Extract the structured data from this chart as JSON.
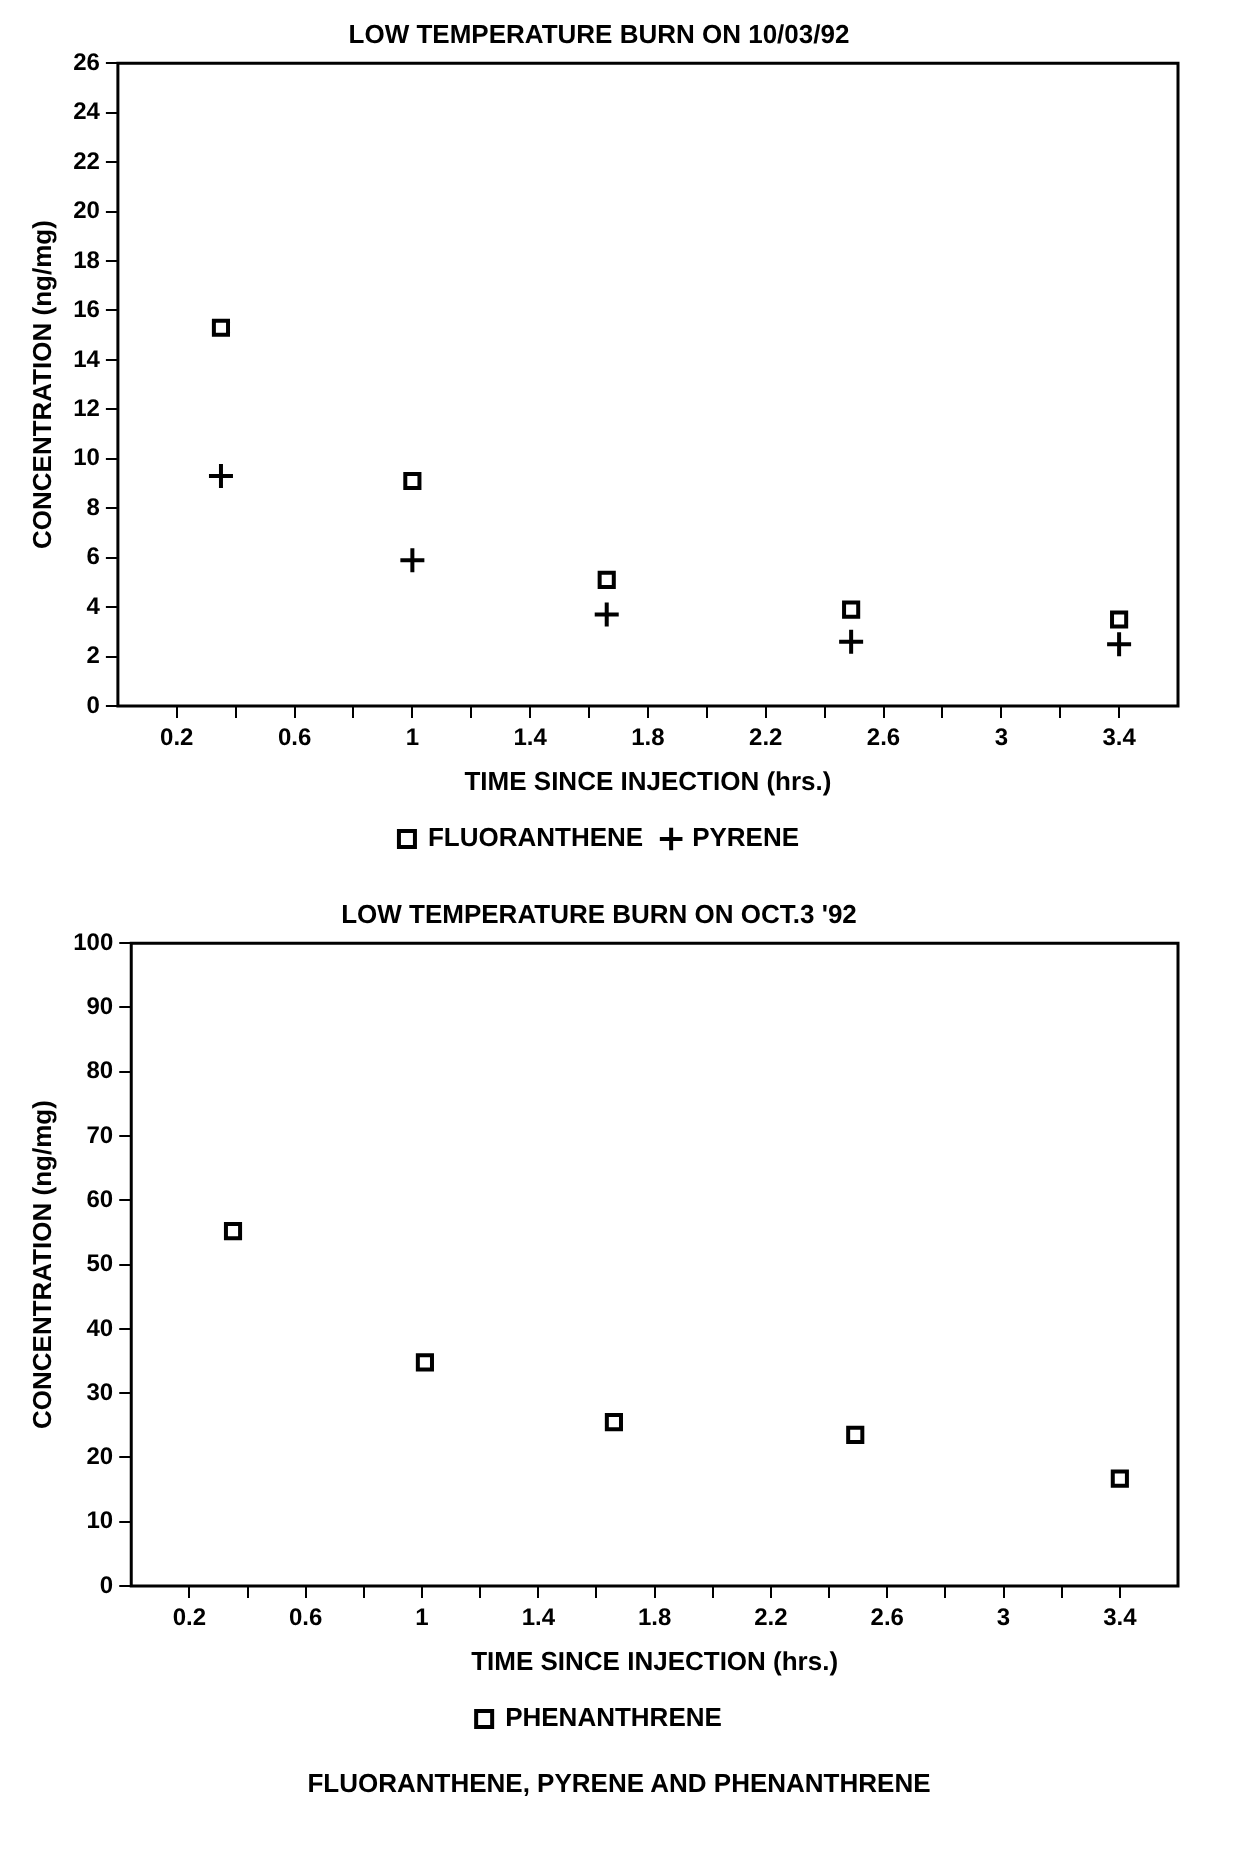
{
  "chart_data": [
    {
      "type": "scatter",
      "title": "LOW TEMPERATURE BURN ON 10/03/92",
      "xlabel": "TIME SINCE INJECTION (hrs.)",
      "ylabel": "CONCENTRATION (ng/mg)",
      "x": [
        0.35,
        1.0,
        1.66,
        2.49,
        3.4
      ],
      "series": [
        {
          "name": "FLUORANTHENE",
          "color": "#000000",
          "marker": "square",
          "values": [
            15.3,
            9.1,
            5.1,
            3.9,
            3.5
          ]
        },
        {
          "name": "PYRENE",
          "color": "#000000",
          "marker": "cross",
          "values": [
            9.3,
            5.9,
            3.7,
            2.6,
            2.5
          ]
        }
      ],
      "xlim": [
        0,
        3.6
      ],
      "xticks": [
        {
          "value": 0.2,
          "label": "0.2"
        },
        {
          "value": 0.4,
          "label": null
        },
        {
          "value": 0.6,
          "label": "0.6"
        },
        {
          "value": 0.8,
          "label": null
        },
        {
          "value": 1,
          "label": "1"
        },
        {
          "value": 1.2,
          "label": null
        },
        {
          "value": 1.4,
          "label": "1.4"
        },
        {
          "value": 1.6,
          "label": null
        },
        {
          "value": 1.8,
          "label": "1.8"
        },
        {
          "value": 2,
          "label": null
        },
        {
          "value": 2.2,
          "label": "2.2"
        },
        {
          "value": 2.4,
          "label": null
        },
        {
          "value": 2.6,
          "label": "2.6"
        },
        {
          "value": 2.8,
          "label": null
        },
        {
          "value": 3,
          "label": "3"
        },
        {
          "value": 3.2,
          "label": null
        },
        {
          "value": 3.4,
          "label": "3.4"
        }
      ],
      "ylim": [
        0,
        26
      ],
      "yticks": [
        0,
        2,
        4,
        6,
        8,
        10,
        12,
        14,
        16,
        18,
        20,
        22,
        24,
        26
      ],
      "legend": "bottom"
    },
    {
      "type": "scatter",
      "title": "LOW TEMPERATURE BURN ON OCT.3 '92",
      "xlabel": "TIME SINCE INJECTION (hrs.)",
      "ylabel": "CONCENTRATION (ng/mg)",
      "x": [
        0.35,
        1.01,
        1.66,
        2.49,
        3.4
      ],
      "series": [
        {
          "name": "PHENANTHRENE",
          "color": "#000000",
          "marker": "square",
          "values": [
            55.2,
            34.8,
            25.5,
            23.5,
            16.7
          ]
        }
      ],
      "xlim": [
        0,
        3.6
      ],
      "xticks": [
        {
          "value": 0.2,
          "label": "0.2"
        },
        {
          "value": 0.4,
          "label": null
        },
        {
          "value": 0.6,
          "label": "0.6"
        },
        {
          "value": 0.8,
          "label": null
        },
        {
          "value": 1,
          "label": "1"
        },
        {
          "value": 1.2,
          "label": null
        },
        {
          "value": 1.4,
          "label": "1.4"
        },
        {
          "value": 1.6,
          "label": null
        },
        {
          "value": 1.8,
          "label": "1.8"
        },
        {
          "value": 2,
          "label": null
        },
        {
          "value": 2.2,
          "label": "2.2"
        },
        {
          "value": 2.4,
          "label": null
        },
        {
          "value": 2.6,
          "label": "2.6"
        },
        {
          "value": 2.8,
          "label": null
        },
        {
          "value": 3,
          "label": "3"
        },
        {
          "value": 3.2,
          "label": null
        },
        {
          "value": 3.4,
          "label": "3.4"
        }
      ],
      "ylim": [
        0,
        100
      ],
      "yticks": [
        0,
        10,
        20,
        30,
        40,
        50,
        60,
        70,
        80,
        90,
        100
      ],
      "legend": "bottom",
      "annotations": [
        "FLUORANTHENE, PYRENE AND PHENANTHRENE"
      ]
    }
  ]
}
